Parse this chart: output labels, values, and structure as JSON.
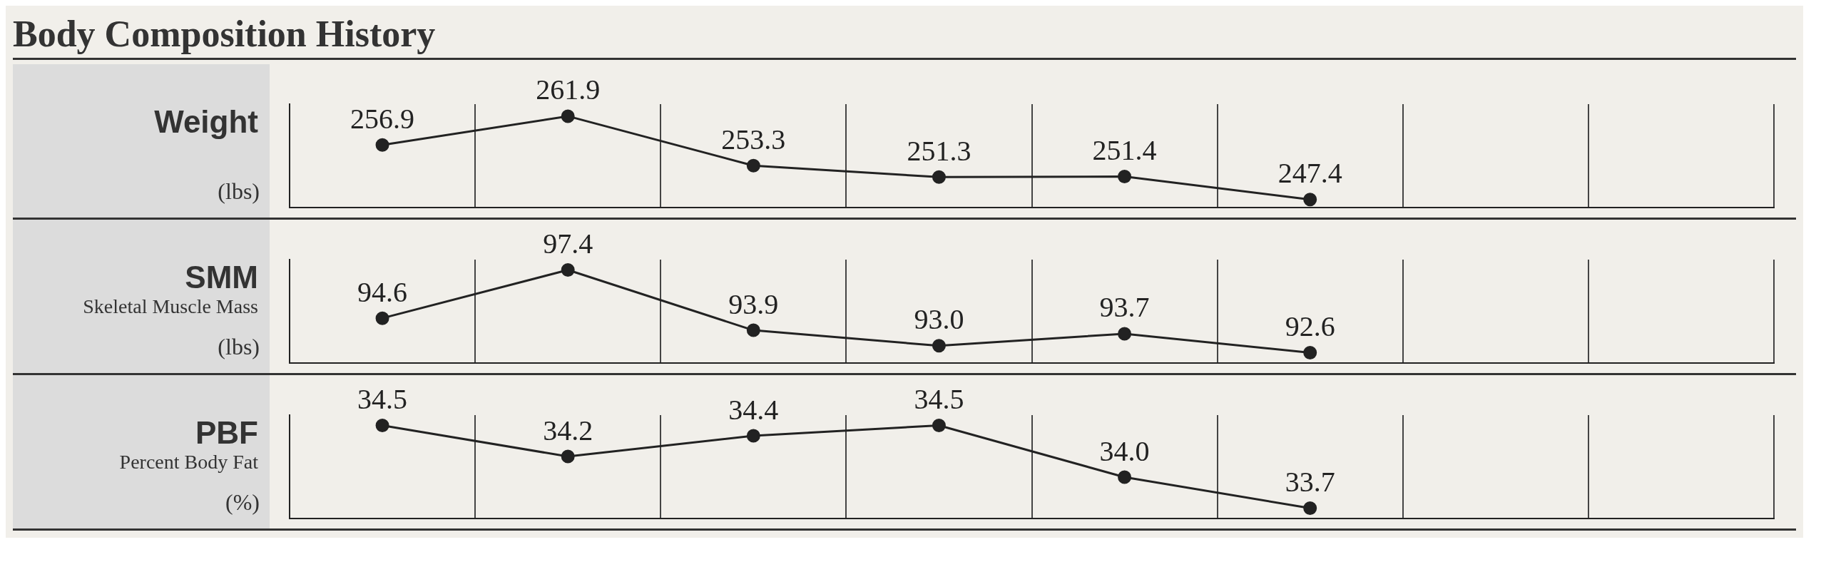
{
  "chart_data": [
    {
      "type": "line",
      "title": "Weight",
      "ylabel": "(lbs)",
      "annotations": [
        "Body Composition History"
      ],
      "categories": [
        null,
        null,
        null,
        null,
        null,
        null,
        null,
        null
      ],
      "series": [
        {
          "color": "#222222",
          "values": [
            256.9,
            261.9,
            253.3,
            251.3,
            251.4,
            247.4,
            null,
            null
          ],
          "value_labels": [
            "256.9",
            "261.9",
            "253.3",
            "251.3",
            "251.4",
            "247.4",
            null,
            null
          ]
        }
      ],
      "marker": "circle",
      "line_style": "solid",
      "grid": "x",
      "tick_labels": false
    },
    {
      "type": "line",
      "title": "SMM",
      "subtitle": "Skeletal Muscle Mass",
      "ylabel": "(lbs)",
      "categories": [
        null,
        null,
        null,
        null,
        null,
        null,
        null,
        null
      ],
      "series": [
        {
          "color": "#222222",
          "values": [
            94.6,
            97.4,
            93.9,
            93.0,
            93.7,
            92.6,
            null,
            null
          ],
          "value_labels": [
            "94.6",
            "97.4",
            "93.9",
            "93.0",
            "93.7",
            "92.6",
            null,
            null
          ]
        }
      ],
      "marker": "circle",
      "line_style": "solid",
      "grid": "x",
      "tick_labels": false
    },
    {
      "type": "line",
      "title": "PBF",
      "subtitle": "Percent Body Fat",
      "ylabel": "(%)",
      "categories": [
        null,
        null,
        null,
        null,
        null,
        null,
        null,
        null
      ],
      "series": [
        {
          "color": "#222222",
          "values": [
            34.5,
            34.2,
            34.4,
            34.5,
            34.0,
            33.7,
            null,
            null
          ],
          "value_labels": [
            "34.5",
            "34.2",
            "34.4",
            "34.5",
            "34.0",
            "33.7",
            null,
            null
          ]
        }
      ],
      "marker": "circle",
      "line_style": "solid",
      "grid": "x",
      "tick_labels": false
    }
  ]
}
